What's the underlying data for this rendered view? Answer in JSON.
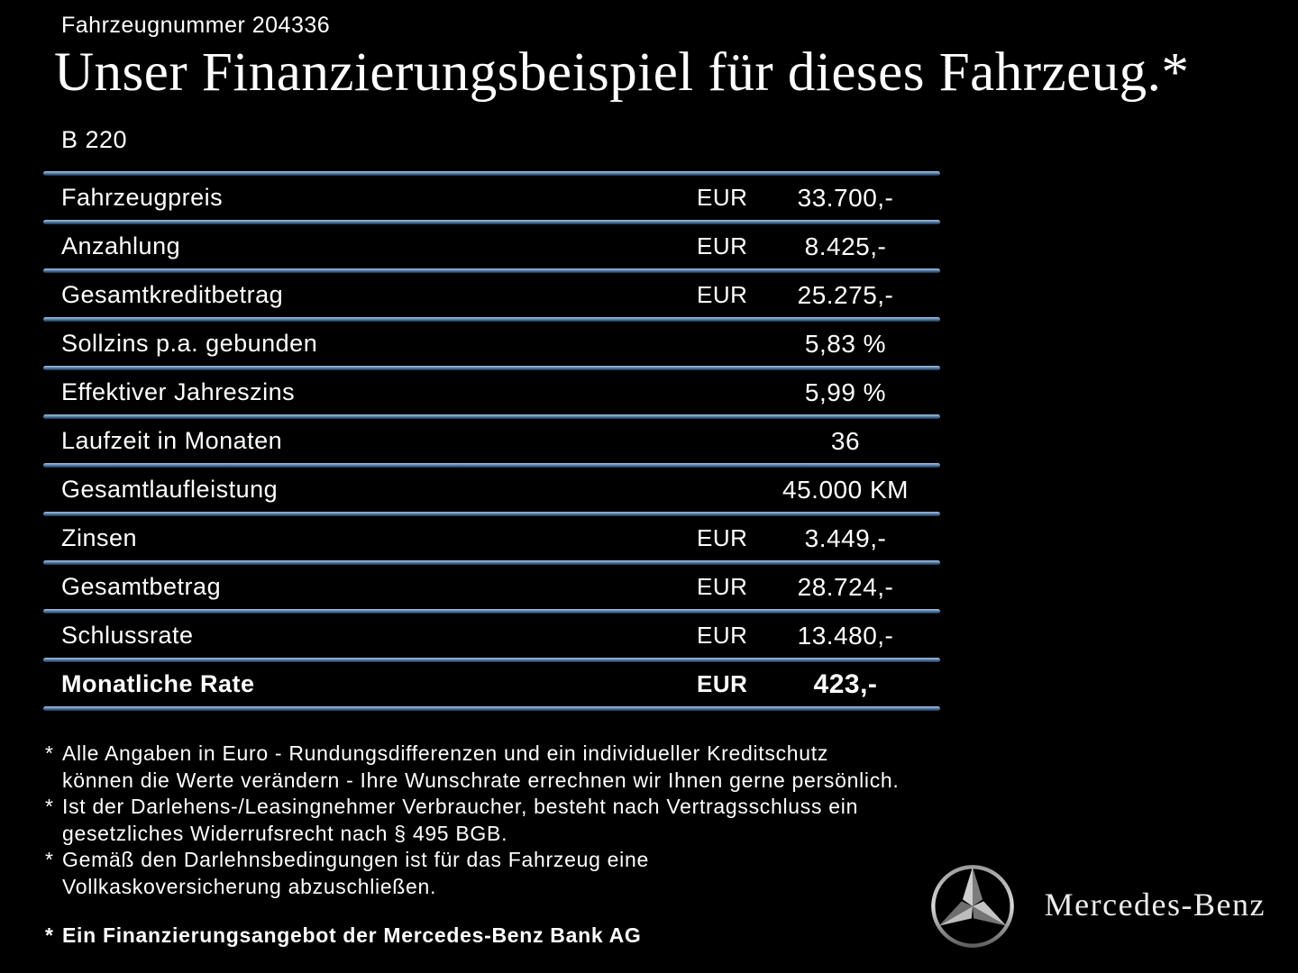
{
  "header": {
    "vehicle_number": "Fahrzeugnummer 204336",
    "title": "Unser Finanzierungsbeispiel für dieses Fahrzeug.*",
    "model": "B 220"
  },
  "table": {
    "rows": [
      {
        "label": "Fahrzeugpreis",
        "currency": "EUR",
        "value": "33.700,-",
        "bold": false
      },
      {
        "label": "Anzahlung",
        "currency": "EUR",
        "value": "8.425,-",
        "bold": false
      },
      {
        "label": "Gesamtkreditbetrag",
        "currency": "EUR",
        "value": "25.275,-",
        "bold": false
      },
      {
        "label": "Sollzins p.a. gebunden",
        "currency": "",
        "value": "5,83 %",
        "bold": false
      },
      {
        "label": "Effektiver Jahreszins",
        "currency": "",
        "value": "5,99 %",
        "bold": false
      },
      {
        "label": "Laufzeit in Monaten",
        "currency": "",
        "value": "36",
        "bold": false
      },
      {
        "label": "Gesamtlaufleistung",
        "currency": "",
        "value": "45.000 KM",
        "bold": false
      },
      {
        "label": "Zinsen",
        "currency": "EUR",
        "value": "3.449,-",
        "bold": false
      },
      {
        "label": "Gesamtbetrag",
        "currency": "EUR",
        "value": "28.724,-",
        "bold": false
      },
      {
        "label": "Schlussrate",
        "currency": "EUR",
        "value": "13.480,-",
        "bold": false
      },
      {
        "label": "Monatliche Rate",
        "currency": "EUR",
        "value": "423,-",
        "bold": true
      }
    ]
  },
  "footnotes": [
    {
      "marker": "*",
      "text": "Alle Angaben in Euro - Rundungsdifferenzen und ein individueller Kreditschutz\nkönnen die Werte verändern - Ihre Wunschrate errechnen wir Ihnen gerne persönlich.",
      "bold": false
    },
    {
      "marker": "*",
      "text": "Ist der Darlehens-/Leasingnehmer Verbraucher, besteht nach Vertragsschluss ein\ngesetzliches Widerrufsrecht nach § 495 BGB.",
      "bold": false
    },
    {
      "marker": "*",
      "text": "Gemäß den Darlehnsbedingungen ist für das Fahrzeug eine\nVollkaskoversicherung abzuschließen.",
      "bold": false
    },
    {
      "marker": "*",
      "text": "Ein Finanzierungsangebot der Mercedes-Benz Bank AG",
      "bold": true
    }
  ],
  "brand": {
    "logo": "mercedes-star-logo",
    "wordmark": "Mercedes-Benz"
  },
  "colors": {
    "background": "#000000",
    "text": "#ffffff",
    "divider_top": "#a9c4e2",
    "divider_bottom": "#142f4d"
  }
}
